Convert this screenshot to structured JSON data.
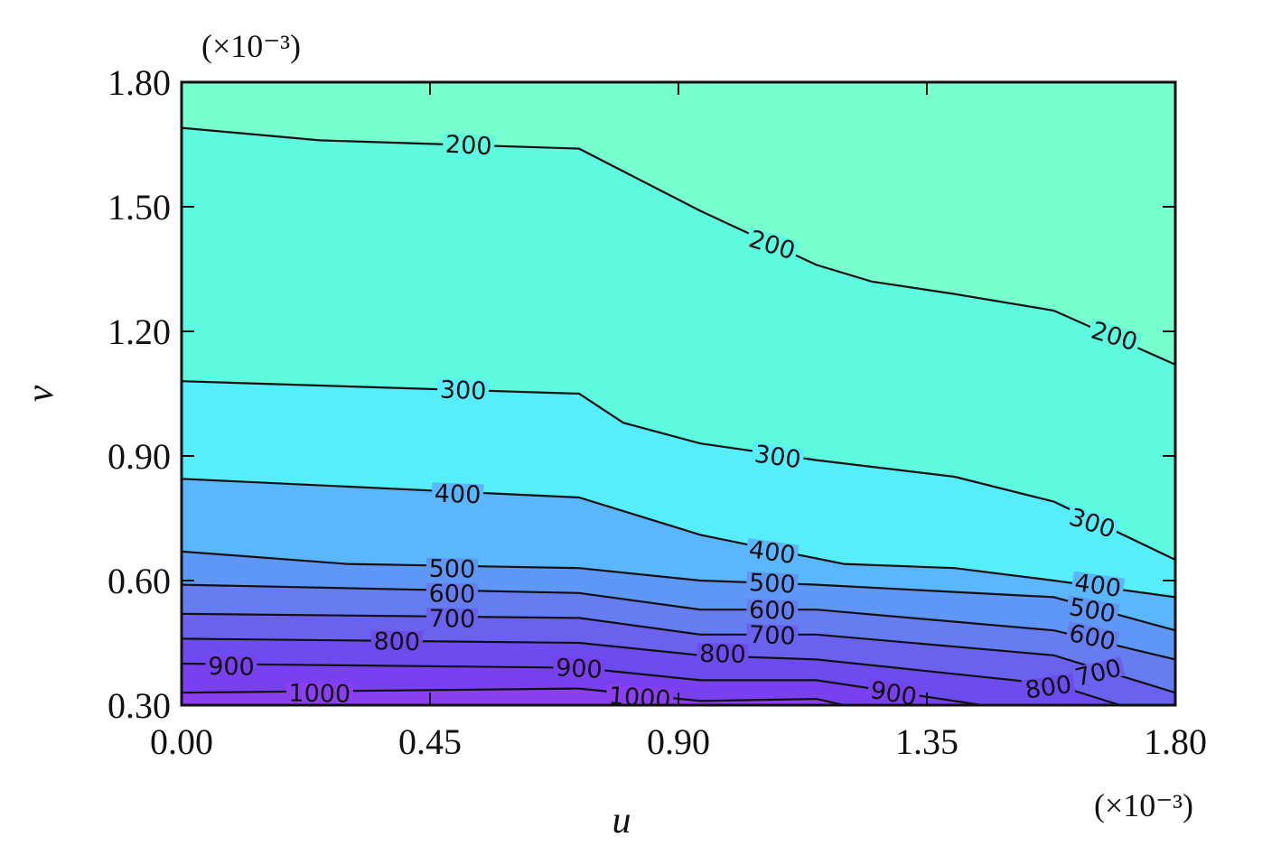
{
  "chart_data": {
    "type": "contour",
    "title": "",
    "xlabel": "u",
    "ylabel": "v",
    "x_scale_note": "(×10⁻³)",
    "y_scale_note": "(×10⁻³)",
    "xlim": [
      0.0,
      1.8
    ],
    "ylim": [
      0.3,
      1.8
    ],
    "x_ticks": [
      "0.00",
      "0.45",
      "0.90",
      "1.35",
      "1.80"
    ],
    "y_ticks": [
      "0.30",
      "0.60",
      "0.90",
      "1.20",
      "1.50",
      "1.80"
    ],
    "x_tick_values": [
      0.0,
      0.45,
      0.9,
      1.35,
      1.8
    ],
    "y_tick_values": [
      0.3,
      0.6,
      0.9,
      1.2,
      1.5,
      1.8
    ],
    "colors": {
      "background_top": "#78ffd0",
      "band_200_300": "#5dfadf",
      "band_300_400": "#57eefc",
      "band_400_500": "#5ab6fd",
      "band_500_600": "#5f97f7",
      "band_600_700": "#667df2",
      "band_700_800": "#6a62ef",
      "band_800_900": "#6d4cef",
      "band_900_1000": "#7840ee",
      "band_above_1000": "#8a3ff0",
      "line": "#111111"
    },
    "contours": [
      {
        "level": 200,
        "label": "200",
        "points": [
          [
            0.0,
            1.69
          ],
          [
            0.25,
            1.66
          ],
          [
            0.72,
            1.64
          ],
          [
            0.94,
            1.49
          ],
          [
            1.15,
            1.36
          ],
          [
            1.25,
            1.32
          ],
          [
            1.4,
            1.29
          ],
          [
            1.58,
            1.25
          ],
          [
            1.8,
            1.12
          ]
        ],
        "labels": [
          {
            "x": 0.52,
            "y": 1.65,
            "angle": 3
          },
          {
            "x": 1.07,
            "y": 1.41,
            "angle": 17
          },
          {
            "x": 1.69,
            "y": 1.19,
            "angle": 17
          }
        ]
      },
      {
        "level": 300,
        "label": "300",
        "points": [
          [
            0.0,
            1.08
          ],
          [
            0.72,
            1.05
          ],
          [
            0.8,
            0.98
          ],
          [
            0.94,
            0.93
          ],
          [
            1.15,
            0.89
          ],
          [
            1.4,
            0.85
          ],
          [
            1.58,
            0.79
          ],
          [
            1.8,
            0.65
          ]
        ],
        "labels": [
          {
            "x": 0.51,
            "y": 1.06,
            "angle": 2
          },
          {
            "x": 1.08,
            "y": 0.9,
            "angle": 8
          },
          {
            "x": 1.65,
            "y": 0.74,
            "angle": 18
          }
        ]
      },
      {
        "level": 400,
        "label": "400",
        "points": [
          [
            0.0,
            0.845
          ],
          [
            0.72,
            0.8
          ],
          [
            0.94,
            0.71
          ],
          [
            1.05,
            0.68
          ],
          [
            1.2,
            0.64
          ],
          [
            1.4,
            0.63
          ],
          [
            1.58,
            0.6
          ],
          [
            1.8,
            0.56
          ]
        ],
        "labels": [
          {
            "x": 0.5,
            "y": 0.81,
            "angle": 2
          },
          {
            "x": 1.07,
            "y": 0.67,
            "angle": 8
          },
          {
            "x": 1.66,
            "y": 0.59,
            "angle": 8
          }
        ]
      },
      {
        "level": 500,
        "label": "500",
        "points": [
          [
            0.0,
            0.67
          ],
          [
            0.3,
            0.64
          ],
          [
            0.72,
            0.63
          ],
          [
            0.94,
            0.6
          ],
          [
            1.15,
            0.59
          ],
          [
            1.58,
            0.56
          ],
          [
            1.8,
            0.48
          ]
        ],
        "labels": [
          {
            "x": 0.49,
            "y": 0.63,
            "angle": 1
          },
          {
            "x": 1.07,
            "y": 0.595,
            "angle": 3
          },
          {
            "x": 1.65,
            "y": 0.53,
            "angle": 10
          }
        ]
      },
      {
        "level": 600,
        "label": "600",
        "points": [
          [
            0.0,
            0.59
          ],
          [
            0.72,
            0.57
          ],
          [
            0.94,
            0.53
          ],
          [
            1.15,
            0.53
          ],
          [
            1.58,
            0.48
          ],
          [
            1.8,
            0.41
          ]
        ],
        "labels": [
          {
            "x": 0.49,
            "y": 0.57,
            "angle": 1
          },
          {
            "x": 1.07,
            "y": 0.53,
            "angle": 2
          },
          {
            "x": 1.65,
            "y": 0.465,
            "angle": 12
          }
        ]
      },
      {
        "level": 700,
        "label": "700",
        "points": [
          [
            0.0,
            0.52
          ],
          [
            0.72,
            0.51
          ],
          [
            0.94,
            0.47
          ],
          [
            1.15,
            0.47
          ],
          [
            1.58,
            0.42
          ],
          [
            1.8,
            0.33
          ]
        ],
        "labels": [
          {
            "x": 0.49,
            "y": 0.51,
            "angle": 1
          },
          {
            "x": 1.07,
            "y": 0.47,
            "angle": 2
          },
          {
            "x": 1.66,
            "y": 0.38,
            "angle": -14
          }
        ]
      },
      {
        "level": 800,
        "label": "800",
        "points": [
          [
            0.0,
            0.46
          ],
          [
            0.72,
            0.45
          ],
          [
            0.94,
            0.42
          ],
          [
            1.15,
            0.41
          ],
          [
            1.58,
            0.35
          ],
          [
            1.7,
            0.3
          ]
        ],
        "labels": [
          {
            "x": 0.39,
            "y": 0.455,
            "angle": 1
          },
          {
            "x": 0.98,
            "y": 0.425,
            "angle": 1
          },
          {
            "x": 1.57,
            "y": 0.345,
            "angle": -8
          }
        ]
      },
      {
        "level": 900,
        "label": "900",
        "points": [
          [
            0.0,
            0.4
          ],
          [
            0.72,
            0.39
          ],
          [
            0.94,
            0.36
          ],
          [
            1.15,
            0.36
          ],
          [
            1.4,
            0.31
          ],
          [
            1.45,
            0.3
          ]
        ],
        "labels": [
          {
            "x": 0.09,
            "y": 0.395,
            "angle": 1
          },
          {
            "x": 0.72,
            "y": 0.39,
            "angle": 3
          },
          {
            "x": 1.29,
            "y": 0.33,
            "angle": 10
          }
        ]
      },
      {
        "level": 1000,
        "label": "1000",
        "points": [
          [
            0.0,
            0.33
          ],
          [
            0.72,
            0.34
          ],
          [
            0.94,
            0.31
          ],
          [
            1.15,
            0.315
          ],
          [
            1.2,
            0.3
          ]
        ],
        "labels": [
          {
            "x": 0.25,
            "y": 0.33,
            "angle": 1
          },
          {
            "x": 0.83,
            "y": 0.32,
            "angle": 4
          }
        ]
      }
    ]
  }
}
